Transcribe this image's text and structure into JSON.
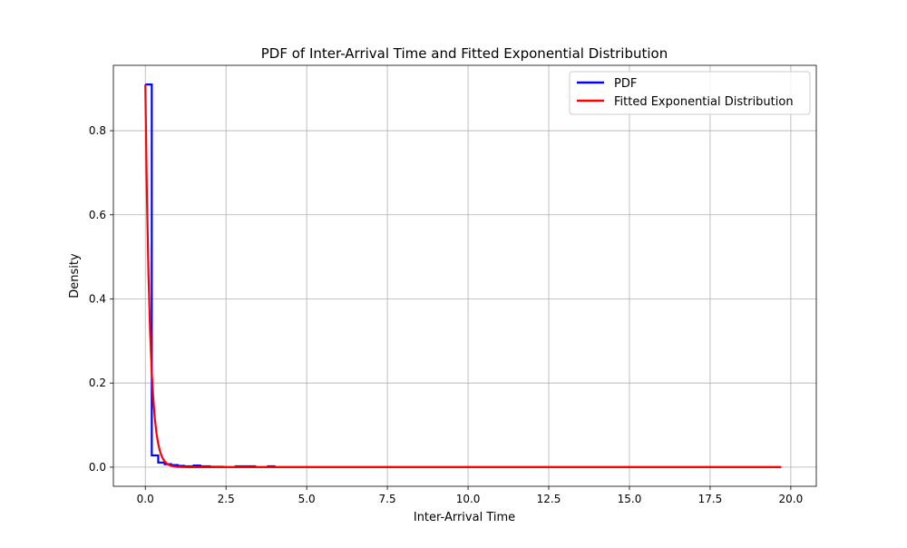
{
  "chart_data": {
    "type": "line",
    "title": "PDF of Inter-Arrival Time and Fitted Exponential Distribution",
    "xlabel": "Inter-Arrival Time",
    "ylabel": "Density",
    "xlim": [
      -0.99,
      20.79
    ],
    "ylim": [
      -0.0455,
      0.9555
    ],
    "xticks": [
      0.0,
      2.5,
      5.0,
      7.5,
      10.0,
      12.5,
      15.0,
      17.5,
      20.0
    ],
    "xtick_labels": [
      "0.0",
      "2.5",
      "5.0",
      "7.5",
      "10.0",
      "12.5",
      "15.0",
      "17.5",
      "20.0"
    ],
    "yticks": [
      0.0,
      0.2,
      0.4,
      0.6,
      0.8
    ],
    "ytick_labels": [
      "0.0",
      "0.2",
      "0.4",
      "0.6",
      "0.8"
    ],
    "grid": true,
    "legend_position": "top-right",
    "series": [
      {
        "name": "PDF",
        "color": "#0000ff",
        "style": "step",
        "x": [
          0.0,
          0.2,
          0.2,
          0.4,
          0.4,
          0.6,
          0.6,
          0.8,
          0.8,
          1.0,
          1.0,
          1.2,
          1.2,
          1.5,
          1.5,
          1.7,
          1.7,
          2.0,
          2.0,
          2.4,
          2.4,
          2.8,
          2.8,
          3.4,
          3.4,
          3.8,
          3.8,
          4.0,
          4.0,
          19.7
        ],
        "y": [
          0.91,
          0.91,
          0.028,
          0.028,
          0.011,
          0.011,
          0.007,
          0.007,
          0.005,
          0.005,
          0.003,
          0.003,
          0.002,
          0.002,
          0.004,
          0.004,
          0.002,
          0.002,
          0.001,
          0.001,
          0.0,
          0.0,
          0.002,
          0.002,
          0.0,
          0.0,
          0.002,
          0.002,
          0.0,
          0.0
        ]
      },
      {
        "name": "Fitted Exponential Distribution",
        "color": "#ff0000",
        "style": "line",
        "function": "exponential",
        "lambda": 0.91,
        "rate": 7.0,
        "x_start": 0.0,
        "x_end": 19.7
      }
    ]
  }
}
